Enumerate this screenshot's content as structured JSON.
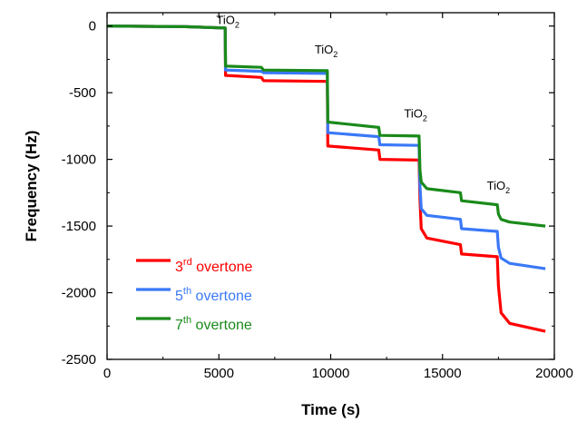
{
  "chart_data": {
    "type": "line",
    "xlabel": "Time (s)",
    "ylabel": "Frequency (Hz)",
    "xlim": [
      0,
      20000
    ],
    "ylim": [
      -2500,
      100
    ],
    "x_ticks": [
      0,
      5000,
      10000,
      15000,
      20000
    ],
    "y_ticks": [
      0,
      -500,
      -1000,
      -1500,
      -2000,
      -2500
    ],
    "x_tick_labels": [
      "0",
      "5000",
      "10000",
      "15000",
      "20000"
    ],
    "y_tick_labels": [
      "0",
      "-500",
      "-1000",
      "-1500",
      "-2000",
      "-2500"
    ],
    "grid": false,
    "legend_position": "bottom-left",
    "annotations": [
      {
        "text_main": "TiO",
        "text_sub": "2",
        "x": 5400,
        "y": 0
      },
      {
        "text_main": "TiO",
        "text_sub": "2",
        "x": 9800,
        "y": -220
      },
      {
        "text_main": "TiO",
        "text_sub": "2",
        "x": 13800,
        "y": -700
      },
      {
        "text_main": "TiO",
        "text_sub": "2",
        "x": 17500,
        "y": -1240
      }
    ],
    "series": [
      {
        "name": "3rd overtone",
        "legend_main": "3",
        "legend_sup": "rd",
        "legend_rest": " overtone",
        "color": "#ff0000",
        "points": [
          [
            0,
            0
          ],
          [
            3500,
            -5
          ],
          [
            5280,
            -15
          ],
          [
            5300,
            -370
          ],
          [
            6900,
            -385
          ],
          [
            7000,
            -410
          ],
          [
            9850,
            -415
          ],
          [
            9870,
            -900
          ],
          [
            12150,
            -930
          ],
          [
            12200,
            -1000
          ],
          [
            13950,
            -1005
          ],
          [
            13990,
            -1300
          ],
          [
            14050,
            -1520
          ],
          [
            14300,
            -1590
          ],
          [
            15800,
            -1640
          ],
          [
            15850,
            -1710
          ],
          [
            17450,
            -1730
          ],
          [
            17500,
            -1950
          ],
          [
            17620,
            -2150
          ],
          [
            18000,
            -2230
          ],
          [
            19600,
            -2290
          ]
        ]
      },
      {
        "name": "5th overtone",
        "legend_main": "5",
        "legend_sup": "th",
        "legend_rest": " overtone",
        "color": "#3a79f7",
        "points": [
          [
            0,
            0
          ],
          [
            3500,
            -5
          ],
          [
            5280,
            -15
          ],
          [
            5300,
            -330
          ],
          [
            6900,
            -340
          ],
          [
            7000,
            -350
          ],
          [
            9850,
            -355
          ],
          [
            9870,
            -800
          ],
          [
            12150,
            -830
          ],
          [
            12200,
            -890
          ],
          [
            13950,
            -895
          ],
          [
            13990,
            -1200
          ],
          [
            14050,
            -1370
          ],
          [
            14300,
            -1420
          ],
          [
            15800,
            -1450
          ],
          [
            15850,
            -1520
          ],
          [
            17450,
            -1540
          ],
          [
            17500,
            -1660
          ],
          [
            17620,
            -1740
          ],
          [
            18000,
            -1780
          ],
          [
            19600,
            -1820
          ]
        ]
      },
      {
        "name": "7th overtone",
        "legend_main": "7",
        "legend_sup": "th",
        "legend_rest": " overtone",
        "color": "#1a8a1a",
        "points": [
          [
            0,
            0
          ],
          [
            3500,
            -5
          ],
          [
            5280,
            -15
          ],
          [
            5300,
            -300
          ],
          [
            6900,
            -310
          ],
          [
            7000,
            -330
          ],
          [
            9850,
            -335
          ],
          [
            9870,
            -720
          ],
          [
            12150,
            -760
          ],
          [
            12200,
            -820
          ],
          [
            13950,
            -825
          ],
          [
            13990,
            -1080
          ],
          [
            14050,
            -1170
          ],
          [
            14300,
            -1220
          ],
          [
            15800,
            -1250
          ],
          [
            15850,
            -1310
          ],
          [
            17450,
            -1340
          ],
          [
            17500,
            -1410
          ],
          [
            17620,
            -1450
          ],
          [
            18000,
            -1470
          ],
          [
            19600,
            -1500
          ]
        ]
      }
    ]
  }
}
